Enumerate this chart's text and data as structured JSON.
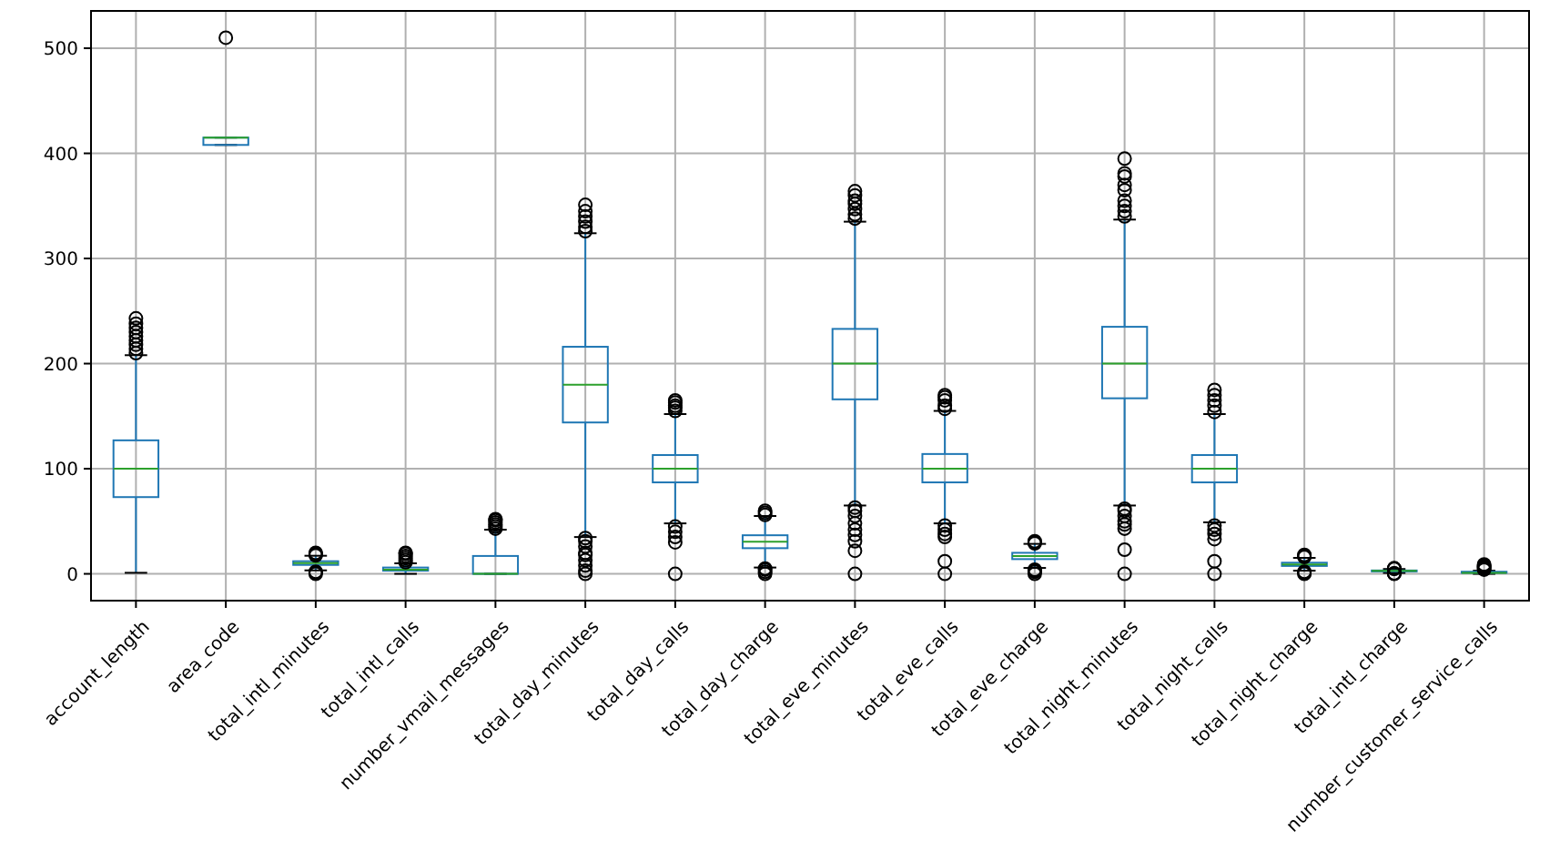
{
  "chart_data": {
    "type": "box",
    "categories": [
      "account_length",
      "area_code",
      "total_intl_minutes",
      "total_intl_calls",
      "number_vmail_messages",
      "total_day_minutes",
      "total_day_calls",
      "total_day_charge",
      "total_eve_minutes",
      "total_eve_calls",
      "total_eve_charge",
      "total_night_minutes",
      "total_night_calls",
      "total_night_charge",
      "total_intl_charge",
      "number_customer_service_calls"
    ],
    "series": [
      {
        "color": "#1f77b4",
        "boxes": [
          {
            "low": 1,
            "q1": 73,
            "median": 100,
            "q3": 127,
            "high": 208,
            "outliers": [
              210,
              214,
              218,
              222,
              226,
              230,
              234,
              238,
              243
            ]
          },
          {
            "low": 408,
            "q1": 408,
            "median": 415,
            "q3": 415,
            "high": 415,
            "outliers": [
              510
            ]
          },
          {
            "low": 3.3,
            "q1": 8.5,
            "median": 10.3,
            "q3": 12,
            "high": 17.2,
            "outliers": [
              0,
              1.1,
              2,
              17.5,
              18.9,
              20
            ]
          },
          {
            "low": 0,
            "q1": 3,
            "median": 4,
            "q3": 6,
            "high": 10,
            "outliers": [
              11,
              13,
              15,
              17,
              19,
              20
            ]
          },
          {
            "low": 0,
            "q1": 0,
            "median": 0,
            "q3": 17,
            "high": 42,
            "outliers": [
              43,
              45,
              47,
              49,
              51,
              52
            ]
          },
          {
            "low": 35,
            "q1": 144,
            "median": 180,
            "q3": 216,
            "high": 324,
            "outliers": [
              0,
              3,
              8,
              13,
              18,
              20,
              26,
              31,
              34,
              326,
              330,
              335,
              340,
              345,
              351
            ]
          },
          {
            "low": 48,
            "q1": 87,
            "median": 100,
            "q3": 113,
            "high": 152,
            "outliers": [
              0,
              30,
              35,
              40,
              45,
              155,
              158,
              160,
              163,
              165
            ]
          },
          {
            "low": 6,
            "q1": 24.4,
            "median": 30.6,
            "q3": 36.7,
            "high": 55,
            "outliers": [
              0,
              2,
              4,
              5,
              56,
              58,
              60
            ]
          },
          {
            "low": 65,
            "q1": 166,
            "median": 200,
            "q3": 233,
            "high": 335,
            "outliers": [
              0,
              22,
              31,
              37,
              42,
              48,
              55,
              60,
              63,
              338,
              342,
              347,
              352,
              355,
              360,
              364
            ]
          },
          {
            "low": 48,
            "q1": 87,
            "median": 100,
            "q3": 114,
            "high": 155,
            "outliers": [
              0,
              12,
              35,
              38,
              42,
              46,
              157,
              160,
              165,
              168,
              170
            ]
          },
          {
            "low": 5.6,
            "q1": 14,
            "median": 17,
            "q3": 20,
            "high": 28.5,
            "outliers": [
              0,
              2,
              3,
              4,
              29,
              30,
              31
            ]
          },
          {
            "low": 65,
            "q1": 167,
            "median": 200,
            "q3": 235,
            "high": 337,
            "outliers": [
              0,
              23,
              43,
              47,
              50,
              55,
              60,
              62,
              340,
              345,
              350,
              355,
              365,
              370,
              378,
              381,
              395
            ]
          },
          {
            "low": 49,
            "q1": 87,
            "median": 100,
            "q3": 113,
            "high": 152,
            "outliers": [
              0,
              12,
              33,
              38,
              42,
              46,
              154,
              160,
              165,
              170,
              175
            ]
          },
          {
            "low": 3,
            "q1": 7.5,
            "median": 9,
            "q3": 10.6,
            "high": 15.2,
            "outliers": [
              0,
              1,
              2,
              16,
              17,
              18
            ]
          },
          {
            "low": 0.9,
            "q1": 2.3,
            "median": 2.8,
            "q3": 3.2,
            "high": 4.6,
            "outliers": [
              0,
              0.3,
              0.5,
              4.8,
              5,
              5.4
            ]
          },
          {
            "low": 0,
            "q1": 1,
            "median": 1,
            "q3": 2,
            "high": 3,
            "outliers": [
              4,
              5,
              6,
              7,
              8,
              9
            ]
          }
        ]
      }
    ],
    "ylim": [
      -25.5,
      535.5
    ],
    "yticks": [
      0,
      100,
      200,
      300,
      400,
      500
    ],
    "grid": true,
    "marker": "circle"
  }
}
